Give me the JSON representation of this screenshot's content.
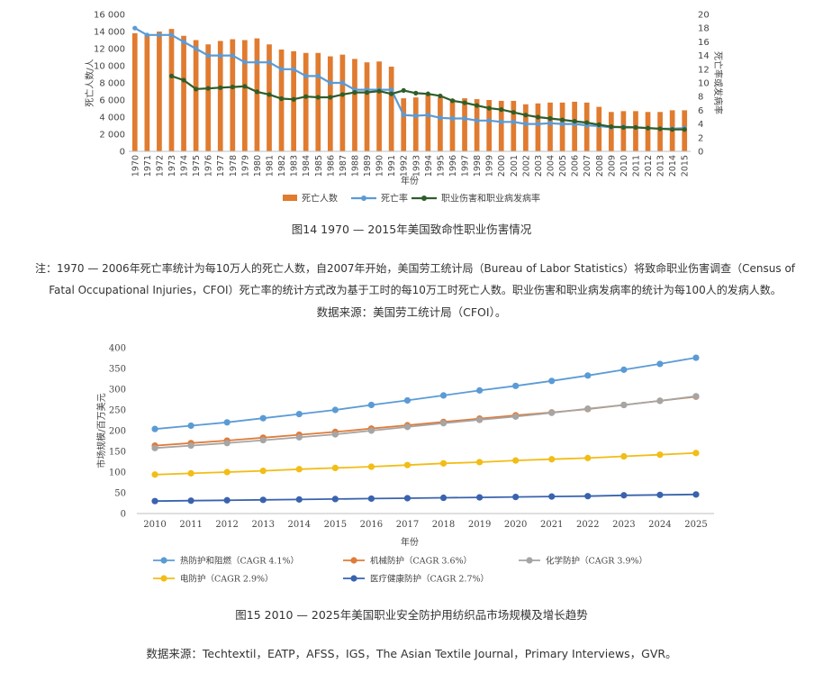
{
  "chart_data": [
    {
      "type": "bar+line",
      "x": [
        "1970",
        "1971",
        "1972",
        "1973",
        "1974",
        "1975",
        "1976",
        "1977",
        "1978",
        "1979",
        "1980",
        "1981",
        "1982",
        "1983",
        "1984",
        "1985",
        "1986",
        "1987",
        "1988",
        "1989",
        "1990",
        "1991",
        "1992",
        "1993",
        "1994",
        "1995",
        "1996",
        "1997",
        "1998",
        "1999",
        "2000",
        "2001",
        "2002",
        "2003",
        "2004",
        "2005",
        "2006",
        "2007",
        "2008",
        "2009",
        "2010",
        "2011",
        "2012",
        "2013",
        "2014",
        "2015"
      ],
      "xlabel": "年份",
      "ylabel": "死亡人数/人",
      "ylabel_right": "死亡率或发病率",
      "ylim": [
        0,
        16000
      ],
      "yticks": [
        "0",
        "2 000",
        "4 000",
        "6 000",
        "8 000",
        "10 000",
        "12 000",
        "14 000",
        "16 000"
      ],
      "ylim_right": [
        0,
        20
      ],
      "yticks_right": [
        "0",
        "2",
        "4",
        "6",
        "8",
        "10",
        "12",
        "14",
        "16",
        "18",
        "20"
      ],
      "legend_position": "bottom",
      "series": [
        {
          "name": "死亡人数",
          "kind": "bar",
          "axis": "left",
          "color": "#E07B2F",
          "values": [
            13800,
            13700,
            14000,
            14300,
            13500,
            13000,
            12500,
            12900,
            13100,
            13000,
            13200,
            12500,
            11900,
            11700,
            11500,
            11500,
            11100,
            11300,
            10800,
            10400,
            10500,
            9900,
            6200,
            6300,
            6600,
            6300,
            6100,
            6200,
            6100,
            6000,
            5900,
            5900,
            5500,
            5600,
            5700,
            5700,
            5800,
            5700,
            5200,
            4600,
            4700,
            4700,
            4600,
            4600,
            4800,
            4800
          ]
        },
        {
          "name": "死亡率",
          "kind": "line",
          "axis": "right",
          "color": "#5B9BD5",
          "values": [
            18,
            17,
            17,
            17,
            16,
            15,
            14,
            14,
            14,
            13,
            13,
            13,
            12,
            12,
            11,
            11,
            10,
            10,
            9,
            9,
            9,
            9,
            5.3,
            5.2,
            5.3,
            4.9,
            4.8,
            4.8,
            4.5,
            4.5,
            4.3,
            4.3,
            4.0,
            4.0,
            4.1,
            4.0,
            4.0,
            3.8,
            3.7,
            3.5,
            3.6,
            3.5,
            3.4,
            3.3,
            3.3,
            3.4
          ]
        },
        {
          "name": "职业伤害和职业病发病率",
          "kind": "line",
          "axis": "right",
          "color": "#2E5E2A",
          "values": [
            null,
            null,
            null,
            11,
            10.4,
            9.1,
            9.2,
            9.3,
            9.4,
            9.5,
            8.7,
            8.3,
            7.7,
            7.6,
            8.0,
            7.9,
            7.9,
            8.3,
            8.6,
            8.6,
            8.8,
            8.4,
            8.9,
            8.5,
            8.4,
            8.1,
            7.4,
            7.1,
            6.7,
            6.3,
            6.1,
            5.7,
            5.3,
            5.0,
            4.8,
            4.6,
            4.4,
            4.2,
            3.9,
            3.6,
            3.5,
            3.5,
            3.4,
            3.3,
            3.2,
            3.2
          ]
        }
      ]
    },
    {
      "type": "line",
      "x": [
        "2010",
        "2011",
        "2012",
        "2013",
        "2014",
        "2015",
        "2016",
        "2017",
        "2018",
        "2019",
        "2020",
        "2021",
        "2022",
        "2023",
        "2024",
        "2025"
      ],
      "xlabel": "年份",
      "ylabel": "市场规模/百万美元",
      "ylim": [
        0,
        400
      ],
      "yticks": [
        "0",
        "50",
        "100",
        "150",
        "200",
        "250",
        "300",
        "350",
        "400"
      ],
      "legend_position": "bottom",
      "series": [
        {
          "name": "热防护和阻燃（CAGR 4.1%）",
          "color": "#5B9BD5",
          "values": [
            204,
            212,
            220,
            230,
            240,
            250,
            262,
            273,
            285,
            297,
            308,
            320,
            333,
            347,
            361,
            376
          ]
        },
        {
          "name": "机械防护（CAGR 3.6%）",
          "color": "#E07B39",
          "values": [
            164,
            170,
            176,
            183,
            190,
            197,
            205,
            213,
            221,
            229,
            237,
            244,
            252,
            262,
            272,
            282
          ]
        },
        {
          "name": "化学防护（CAGR 3.9%）",
          "color": "#A5A5A5",
          "values": [
            158,
            164,
            170,
            177,
            184,
            191,
            200,
            209,
            218,
            226,
            234,
            243,
            253,
            262,
            272,
            283
          ]
        },
        {
          "name": "电防护（CAGR 2.9%）",
          "color": "#F2BD16",
          "values": [
            94,
            97,
            100,
            103,
            107,
            110,
            113,
            117,
            121,
            124,
            128,
            131,
            134,
            138,
            142,
            146
          ]
        },
        {
          "name": "医疗健康防护（CAGR 2.7%）",
          "color": "#3A63AE",
          "values": [
            30,
            31,
            32,
            33,
            34,
            35,
            36,
            37,
            38,
            39,
            40,
            41,
            42,
            44,
            45,
            46
          ]
        }
      ]
    }
  ],
  "captions": {
    "fig14": "图14 1970 — 2015年美国致命性职业伤害情况",
    "note_line1": "注：1970 — 2006年死亡率统计为每10万人的死亡人数，自2007年开始，美国劳工统计局（Bureau of Labor Statistics）将致命职业伤害调查（Census of",
    "note_line2": "Fatal Occupational Injuries，CFOI）死亡率的统计方式改为基于工时的每10万工时死亡人数。职业伤害和职业病发病率的统计为每100人的发病人数。",
    "source14": "数据来源：美国劳工统计局（CFOI）。",
    "fig15": "图15 2010 — 2025年美国职业安全防护用纺织品市场规模及增长趋势",
    "source15": "数据来源：Techtextil，EATP，AFSS，IGS，The Asian Textile Journal，Primary Interviews，GVR。"
  }
}
